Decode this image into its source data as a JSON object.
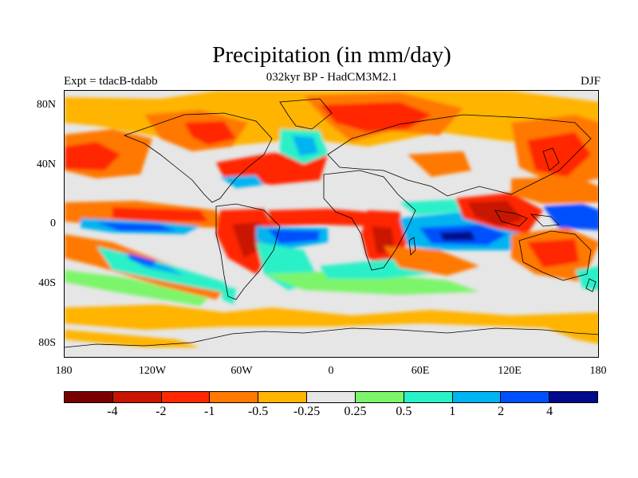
{
  "title": "Precipitation (in mm/day)",
  "subtitle": "032kyr BP - HadCM3M2.1",
  "left_label": "Expt = tdacB-tdabb",
  "right_label": "DJF",
  "lat_labels": [
    "80N",
    "40N",
    "0",
    "40S",
    "80S"
  ],
  "lon_labels": [
    "180",
    "120W",
    "60W",
    "0",
    "60E",
    "120E",
    "180"
  ],
  "colorbar": {
    "colors": [
      "#7a0000",
      "#c81400",
      "#ff2800",
      "#ff7800",
      "#ffb400",
      "#e6e6e6",
      "#7cf56a",
      "#2af0c8",
      "#00b4f0",
      "#0050ff",
      "#000a8c"
    ],
    "labels": [
      "-4",
      "-2",
      "-1",
      "-0.5",
      "-0.25",
      "0.25",
      "0.5",
      "1",
      "2",
      "4"
    ]
  }
}
